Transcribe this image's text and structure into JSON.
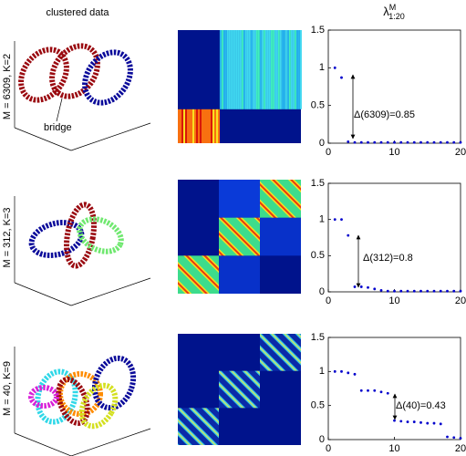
{
  "column_title": "clustered data",
  "eigen_title": {
    "symbol": "λ",
    "sup": "M",
    "sub": "1:20"
  },
  "bridge_label": "bridge",
  "chart_data": [
    {
      "type": "scatter",
      "row_label": "M = 6309, K=2",
      "annotation": "Δ(6309)=0.85",
      "color": "#0000cc",
      "x": [
        1,
        2,
        3,
        4,
        5,
        6,
        7,
        8,
        9,
        10,
        11,
        12,
        13,
        14,
        15,
        16,
        17,
        18,
        19,
        20
      ],
      "values": [
        1.0,
        0.87,
        0.02,
        0.01,
        0.01,
        0.01,
        0.01,
        0.01,
        0.01,
        0.01,
        0.01,
        0.01,
        0.01,
        0.01,
        0.01,
        0.01,
        0.01,
        0.01,
        0.01,
        0.01
      ],
      "xlim": [
        0,
        20
      ],
      "ylim": [
        0,
        1.5
      ],
      "xticks": [
        0,
        10,
        20
      ],
      "yticks": [
        0,
        0.5,
        1,
        1.5
      ]
    },
    {
      "type": "scatter",
      "row_label": "M = 312, K=3",
      "annotation": "Δ(312)=0.8",
      "color": "#0000cc",
      "x": [
        1,
        2,
        3,
        4,
        5,
        6,
        7,
        8,
        9,
        10,
        11,
        12,
        13,
        14,
        15,
        16,
        17,
        18,
        19,
        20
      ],
      "values": [
        1.0,
        1.0,
        0.78,
        0.07,
        0.07,
        0.06,
        0.04,
        0.02,
        0.01,
        0.01,
        0.01,
        0.01,
        0.01,
        0.01,
        0.01,
        0.01,
        0.01,
        0.01,
        0.01,
        0.01
      ],
      "xlim": [
        0,
        20
      ],
      "ylim": [
        0,
        1.5
      ],
      "xticks": [
        0,
        10,
        20
      ],
      "yticks": [
        0,
        0.5,
        1,
        1.5
      ]
    },
    {
      "type": "scatter",
      "row_label": "M = 40, K=9",
      "annotation": "Δ(40)=0.43",
      "color": "#0000cc",
      "x": [
        1,
        2,
        3,
        4,
        5,
        6,
        7,
        8,
        9,
        10,
        11,
        12,
        13,
        14,
        15,
        16,
        17,
        18,
        19,
        20
      ],
      "values": [
        1.0,
        1.0,
        0.98,
        0.96,
        0.72,
        0.72,
        0.72,
        0.7,
        0.68,
        0.28,
        0.27,
        0.26,
        0.26,
        0.25,
        0.24,
        0.24,
        0.23,
        0.04,
        0.03,
        0.02
      ],
      "xlim": [
        0,
        20
      ],
      "ylim": [
        0,
        1.5
      ],
      "xticks": [
        0,
        10,
        20
      ],
      "yticks": [
        0,
        0.5,
        1,
        1.5
      ]
    }
  ]
}
